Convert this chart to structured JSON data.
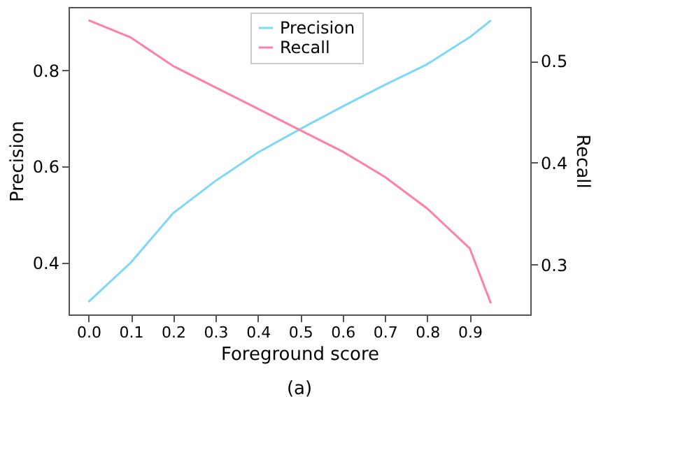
{
  "chart_data": {
    "type": "line",
    "xlabel": "Foreground score",
    "ylabel": "Precision",
    "y2label": "Recall",
    "x": [
      0.0,
      0.1,
      0.2,
      0.3,
      0.4,
      0.5,
      0.6,
      0.7,
      0.8,
      0.9,
      0.95
    ],
    "series": [
      {
        "name": "Precision",
        "color": "#7fd7f7",
        "values": [
          0.318,
          0.4,
          0.503,
          0.57,
          0.629,
          0.678,
          0.725,
          0.77,
          0.813,
          0.869,
          0.904
        ]
      },
      {
        "name": "Recall",
        "color": "#ff7fa8",
        "axis": "y2",
        "values": [
          0.54,
          0.523,
          0.495,
          0.474,
          0.453,
          0.432,
          0.411,
          0.386,
          0.355,
          0.316,
          0.262
        ]
      }
    ],
    "xlim": [
      -0.047,
      1.043
    ],
    "xticks": [
      {
        "value": 0,
        "label": "0.0"
      },
      0.1,
      0.2,
      0.3,
      0.4,
      0.5,
      0.6,
      0.7,
      0.8,
      0.9
    ],
    "ylim": [
      0.292,
      0.932
    ],
    "yticks": [
      0.4,
      0.6,
      0.8
    ],
    "y2lim": [
      0.251,
      0.553
    ],
    "y2ticks": [
      0.3,
      0.4,
      0.5
    ],
    "legend": "top",
    "grid": false,
    "line_style": "solid",
    "annotations": [
      "(a)"
    ]
  }
}
